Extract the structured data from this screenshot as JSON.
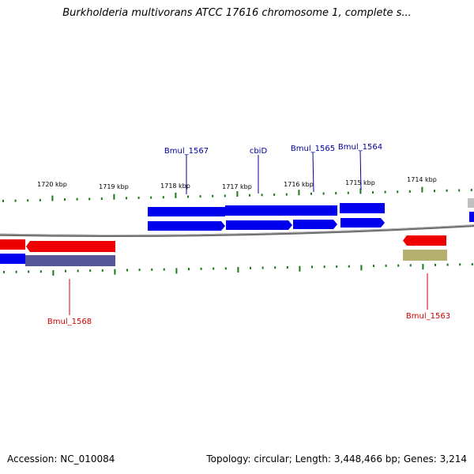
{
  "title": "Burkholderia multivorans ATCC 17616 chromosome 1, complete s...",
  "footer": {
    "accession": "Accession: NC_010084",
    "summary": "Topology: circular; Length: 3,448,466 bp; Genes: 3,214"
  },
  "colors": {
    "forward_gene": "#0000ee",
    "reverse_gene": "#ee0000",
    "tick": "#1a7a1a",
    "axis": "#6e6e6e",
    "label_blue": "#000099",
    "label_red": "#cc0000",
    "grey_block": "#c0c0c0",
    "olive_block": "#b5b070",
    "slate_block": "#55559a"
  },
  "scale_labels": [
    "1720 kbp",
    "1719 kbp",
    "1718 kbp",
    "1717 kbp",
    "1716 kbp",
    "1715 kbp",
    "1714 kbp"
  ],
  "gene_labels": [
    {
      "text": "Bmul_1567",
      "strand": "forward"
    },
    {
      "text": "cbiD",
      "strand": "forward"
    },
    {
      "text": "Bmul_1565",
      "strand": "forward"
    },
    {
      "text": "Bmul_1564",
      "strand": "forward"
    },
    {
      "text": "Bmul_1568",
      "strand": "reverse"
    },
    {
      "text": "Bmul_1563",
      "strand": "reverse"
    }
  ]
}
